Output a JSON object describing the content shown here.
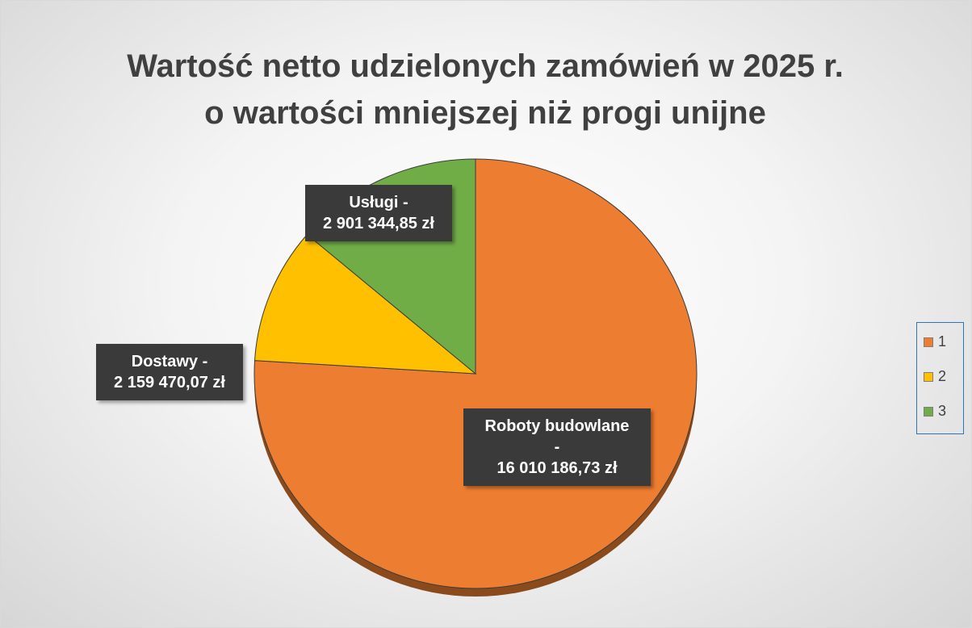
{
  "chart_data": {
    "type": "pie",
    "title": "Wartość netto udzielonych zamówień w 2025 r.\no wartości mniejszej niż progi unijne",
    "categories": [
      "1",
      "2",
      "3"
    ],
    "values": [
      16010186.73,
      2159470.07,
      2901344.85
    ],
    "value_labels": [
      "Roboty budowlane\n-\n16 010 186,73 zł",
      "Dostawy -\n2 159 470,07 zł",
      "Usługi -\n2 901 344,85 zł"
    ],
    "colors": [
      "#ed7d31",
      "#ffc000",
      "#70ad47"
    ],
    "legend": "right"
  }
}
